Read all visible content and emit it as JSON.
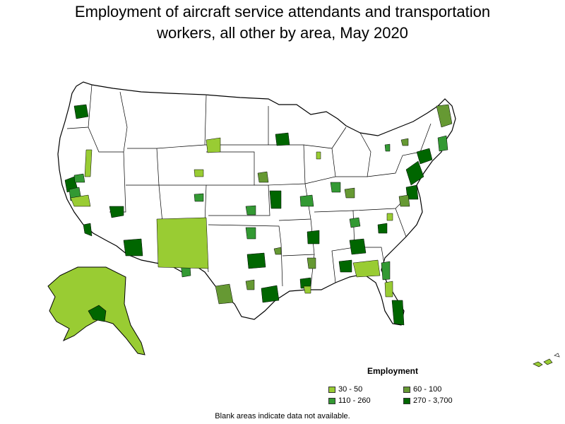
{
  "title": {
    "line1": "Employment of aircraft service attendants and transportation",
    "line2": "workers, all other by area, May 2020"
  },
  "legend": {
    "title": "Employment",
    "items": [
      {
        "label": "30 - 50",
        "color": "#99cc33"
      },
      {
        "label": "60 - 100",
        "color": "#669933"
      },
      {
        "label": "110 - 260",
        "color": "#339933"
      },
      {
        "label": "270 - 3,700",
        "color": "#006600"
      }
    ]
  },
  "footnote": "Blank areas indicate data not available.",
  "colors": {
    "border": "#000000",
    "blank": "#ffffff"
  }
}
